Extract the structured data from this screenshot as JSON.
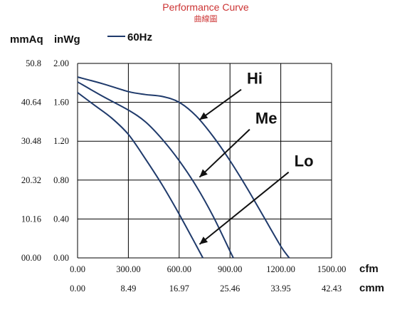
{
  "title": "Performance Curve",
  "subtitle": "曲線圖",
  "units": {
    "left_outer": "mmAq",
    "left_inner": "inWg",
    "bottom_top": "cfm",
    "bottom_bottom": "cmm"
  },
  "legend": {
    "label": "60Hz",
    "color": "#1f3a6b"
  },
  "colors": {
    "curve": "#1f3a6b",
    "grid": "#000000",
    "arrow": "#111111",
    "title": "#cc3333"
  },
  "chart_data": {
    "type": "line",
    "title": "Performance Curve",
    "xlabel": "cfm",
    "ylabel": "inWg",
    "xlim": [
      0,
      1500
    ],
    "ylim": [
      0,
      2.0
    ],
    "grid": true,
    "legend_position": "top-left",
    "x_ticks": [
      "0.00",
      "300.00",
      "600.00",
      "900.00",
      "1200.00",
      "1500.00"
    ],
    "x2_ticks": [
      "0.00",
      "8.49",
      "16.97",
      "25.46",
      "33.95",
      "42.43"
    ],
    "y_ticks": [
      "0.00",
      "0.40",
      "0.80",
      "1.20",
      "1.60",
      "2.00"
    ],
    "y2_ticks": [
      "00.00",
      "10.16",
      "20.32",
      "30.48",
      "40.64",
      "50.8"
    ],
    "series": [
      {
        "name": "Hi",
        "x": [
          0,
          150,
          300,
          400,
          500,
          600,
          700,
          800,
          900,
          1000,
          1100,
          1200,
          1250
        ],
        "y": [
          1.86,
          1.79,
          1.71,
          1.68,
          1.66,
          1.6,
          1.46,
          1.25,
          1.0,
          0.72,
          0.42,
          0.12,
          0.0
        ]
      },
      {
        "name": "Me",
        "x": [
          0,
          150,
          300,
          400,
          500,
          600,
          700,
          800,
          900,
          920
        ],
        "y": [
          1.81,
          1.66,
          1.52,
          1.4,
          1.22,
          1.0,
          0.74,
          0.43,
          0.07,
          0.0
        ]
      },
      {
        "name": "Lo",
        "x": [
          0,
          100,
          200,
          300,
          400,
          500,
          600,
          700,
          740
        ],
        "y": [
          1.7,
          1.57,
          1.44,
          1.27,
          1.02,
          0.75,
          0.45,
          0.13,
          0.0
        ]
      }
    ],
    "annotations": [
      {
        "text": "Hi",
        "arrow_to_x": 720,
        "arrow_to_y": 1.42,
        "text_x": 1000,
        "text_y": 1.79
      },
      {
        "text": "Me",
        "arrow_to_x": 720,
        "arrow_to_y": 0.83,
        "text_x": 1050,
        "text_y": 1.38
      },
      {
        "text": "Lo",
        "arrow_to_x": 720,
        "arrow_to_y": 0.14,
        "text_x": 1280,
        "text_y": 0.94
      }
    ]
  }
}
